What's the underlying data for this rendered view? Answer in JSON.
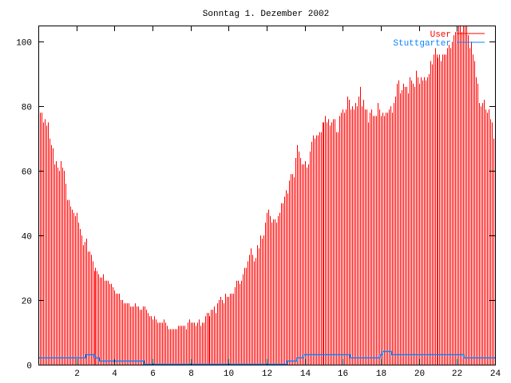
{
  "chart_data": {
    "type": "bar",
    "title": "Sonntag 1. Dezember 2002",
    "xlabel": "",
    "ylabel": "",
    "xlim": [
      0,
      24
    ],
    "ylim": [
      0,
      105
    ],
    "xticks": [
      2,
      4,
      6,
      8,
      10,
      12,
      14,
      16,
      18,
      20,
      22,
      24
    ],
    "yticks": [
      0,
      20,
      40,
      60,
      80,
      100
    ],
    "bar_interval_hours": 0.0833333,
    "legend_position": "top-right",
    "series": [
      {
        "name": "User",
        "style": "impulses",
        "color": "#ff0000",
        "values": [
          76,
          78,
          78,
          75,
          76,
          74,
          75,
          70,
          68,
          67,
          62,
          63,
          61,
          60,
          63,
          61,
          60,
          56,
          51,
          51,
          49,
          48,
          47,
          46,
          47,
          44,
          42,
          40,
          37,
          38,
          39,
          35,
          35,
          34,
          32,
          29,
          30,
          29,
          28,
          27,
          27,
          28,
          26,
          26,
          26,
          25,
          25,
          24,
          23,
          22,
          22,
          22,
          20,
          20,
          19,
          19,
          19,
          19,
          18,
          18,
          18,
          19,
          18,
          18,
          17,
          17,
          18,
          18,
          17,
          16,
          15,
          15,
          14,
          15,
          14,
          13,
          13,
          13,
          13,
          14,
          13,
          12,
          11,
          11,
          11,
          11,
          11,
          11,
          12,
          12,
          12,
          12,
          12,
          11,
          13,
          14,
          13,
          13,
          13,
          12,
          13,
          14,
          12,
          13,
          13,
          15,
          16,
          16,
          15,
          17,
          17,
          18,
          16,
          19,
          20,
          21,
          20,
          19,
          22,
          21,
          21,
          22,
          22,
          22,
          24,
          26,
          26,
          25,
          26,
          28,
          30,
          30,
          32,
          34,
          36,
          34,
          32,
          33,
          37,
          36,
          40,
          39,
          40,
          44,
          47,
          48,
          46,
          44,
          45,
          45,
          44,
          46,
          47,
          50,
          50,
          52,
          54,
          53,
          57,
          59,
          59,
          58,
          64,
          68,
          66,
          64,
          62,
          62,
          63,
          61,
          62,
          66,
          69,
          71,
          70,
          71,
          71,
          72,
          72,
          75,
          75,
          77,
          75,
          76,
          74,
          75,
          76,
          76,
          72,
          72,
          77,
          78,
          79,
          78,
          79,
          83,
          82,
          79,
          80,
          79,
          81,
          80,
          83,
          86,
          80,
          82,
          79,
          79,
          75,
          78,
          79,
          77,
          77,
          77,
          81,
          79,
          77,
          78,
          77,
          78,
          78,
          79,
          80,
          78,
          81,
          83,
          87,
          88,
          84,
          85,
          87,
          86,
          86,
          84,
          89,
          88,
          87,
          86,
          91,
          89,
          87,
          89,
          88,
          89,
          88,
          89,
          90,
          94,
          93,
          96,
          98,
          96,
          95,
          96,
          94,
          96,
          96,
          96,
          98,
          99,
          98,
          100,
          102,
          103,
          107,
          107,
          107,
          103,
          107,
          107,
          107,
          102,
          98,
          100,
          96,
          94,
          89,
          87,
          81,
          80,
          81,
          82,
          79,
          78,
          79,
          76,
          75,
          70
        ]
      },
      {
        "name": "Stuttgarter",
        "style": "steps",
        "color": "#0a84ff",
        "steps": [
          [
            0,
            2
          ],
          [
            2.5,
            3
          ],
          [
            2.95,
            2
          ],
          [
            3.2,
            1
          ],
          [
            5.55,
            0
          ],
          [
            13.05,
            1
          ],
          [
            13.6,
            2
          ],
          [
            13.95,
            3
          ],
          [
            16.4,
            2
          ],
          [
            17.95,
            3
          ],
          [
            18.1,
            4
          ],
          [
            18.55,
            3
          ],
          [
            22.35,
            2
          ],
          [
            24,
            2
          ]
        ]
      }
    ]
  }
}
